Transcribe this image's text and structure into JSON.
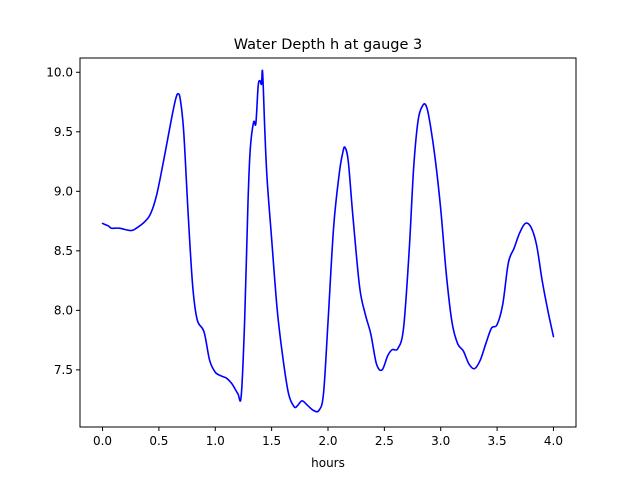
{
  "chart_data": {
    "type": "line",
    "title": "Water Depth h at gauge 3",
    "xlabel": "hours",
    "ylabel": "",
    "xlim": [
      -0.2,
      4.2
    ],
    "ylim": [
      7.02,
      10.12
    ],
    "xticks": [
      0.0,
      0.5,
      1.0,
      1.5,
      2.0,
      2.5,
      3.0,
      3.5,
      4.0
    ],
    "xtick_labels": [
      "0.0",
      "0.5",
      "1.0",
      "1.5",
      "2.0",
      "2.5",
      "3.0",
      "3.5",
      "4.0"
    ],
    "yticks": [
      7.5,
      8.0,
      8.5,
      9.0,
      9.5,
      10.0
    ],
    "ytick_labels": [
      "7.5",
      "8.0",
      "8.5",
      "9.0",
      "9.5",
      "10.0"
    ],
    "grid": false,
    "legend": "none",
    "series": [
      {
        "color": "#0000ff",
        "points": [
          [
            0.0,
            8.73
          ],
          [
            0.05,
            8.71
          ],
          [
            0.08,
            8.69
          ],
          [
            0.15,
            8.69
          ],
          [
            0.25,
            8.67
          ],
          [
            0.3,
            8.69
          ],
          [
            0.38,
            8.75
          ],
          [
            0.43,
            8.82
          ],
          [
            0.48,
            8.97
          ],
          [
            0.53,
            9.2
          ],
          [
            0.58,
            9.45
          ],
          [
            0.62,
            9.65
          ],
          [
            0.65,
            9.78
          ],
          [
            0.67,
            9.82
          ],
          [
            0.69,
            9.77
          ],
          [
            0.72,
            9.5
          ],
          [
            0.76,
            8.8
          ],
          [
            0.8,
            8.2
          ],
          [
            0.84,
            7.92
          ],
          [
            0.9,
            7.82
          ],
          [
            0.95,
            7.58
          ],
          [
            1.0,
            7.48
          ],
          [
            1.05,
            7.45
          ],
          [
            1.1,
            7.43
          ],
          [
            1.15,
            7.38
          ],
          [
            1.2,
            7.3
          ],
          [
            1.23,
            7.28
          ],
          [
            1.26,
            7.9
          ],
          [
            1.29,
            8.9
          ],
          [
            1.31,
            9.35
          ],
          [
            1.34,
            9.58
          ],
          [
            1.36,
            9.57
          ],
          [
            1.38,
            9.88
          ],
          [
            1.395,
            9.93
          ],
          [
            1.41,
            9.9
          ],
          [
            1.42,
            10.0
          ],
          [
            1.44,
            9.5
          ],
          [
            1.46,
            9.1
          ],
          [
            1.5,
            8.6
          ],
          [
            1.55,
            8.0
          ],
          [
            1.6,
            7.6
          ],
          [
            1.65,
            7.3
          ],
          [
            1.7,
            7.19
          ],
          [
            1.73,
            7.2
          ],
          [
            1.77,
            7.24
          ],
          [
            1.82,
            7.2
          ],
          [
            1.87,
            7.16
          ],
          [
            1.92,
            7.16
          ],
          [
            1.96,
            7.3
          ],
          [
            2.0,
            7.9
          ],
          [
            2.05,
            8.7
          ],
          [
            2.1,
            9.15
          ],
          [
            2.13,
            9.32
          ],
          [
            2.15,
            9.37
          ],
          [
            2.18,
            9.25
          ],
          [
            2.22,
            8.8
          ],
          [
            2.28,
            8.2
          ],
          [
            2.33,
            7.97
          ],
          [
            2.38,
            7.8
          ],
          [
            2.43,
            7.55
          ],
          [
            2.48,
            7.5
          ],
          [
            2.53,
            7.62
          ],
          [
            2.57,
            7.67
          ],
          [
            2.62,
            7.68
          ],
          [
            2.67,
            7.85
          ],
          [
            2.72,
            8.5
          ],
          [
            2.76,
            9.2
          ],
          [
            2.8,
            9.6
          ],
          [
            2.84,
            9.72
          ],
          [
            2.87,
            9.72
          ],
          [
            2.9,
            9.6
          ],
          [
            2.95,
            9.28
          ],
          [
            3.0,
            8.85
          ],
          [
            3.05,
            8.3
          ],
          [
            3.1,
            7.9
          ],
          [
            3.15,
            7.72
          ],
          [
            3.2,
            7.66
          ],
          [
            3.25,
            7.55
          ],
          [
            3.3,
            7.51
          ],
          [
            3.35,
            7.58
          ],
          [
            3.4,
            7.72
          ],
          [
            3.45,
            7.85
          ],
          [
            3.5,
            7.88
          ],
          [
            3.55,
            8.05
          ],
          [
            3.6,
            8.4
          ],
          [
            3.65,
            8.52
          ],
          [
            3.7,
            8.65
          ],
          [
            3.75,
            8.73
          ],
          [
            3.8,
            8.7
          ],
          [
            3.85,
            8.55
          ],
          [
            3.9,
            8.25
          ],
          [
            3.95,
            8.0
          ],
          [
            4.0,
            7.78
          ]
        ]
      }
    ]
  }
}
